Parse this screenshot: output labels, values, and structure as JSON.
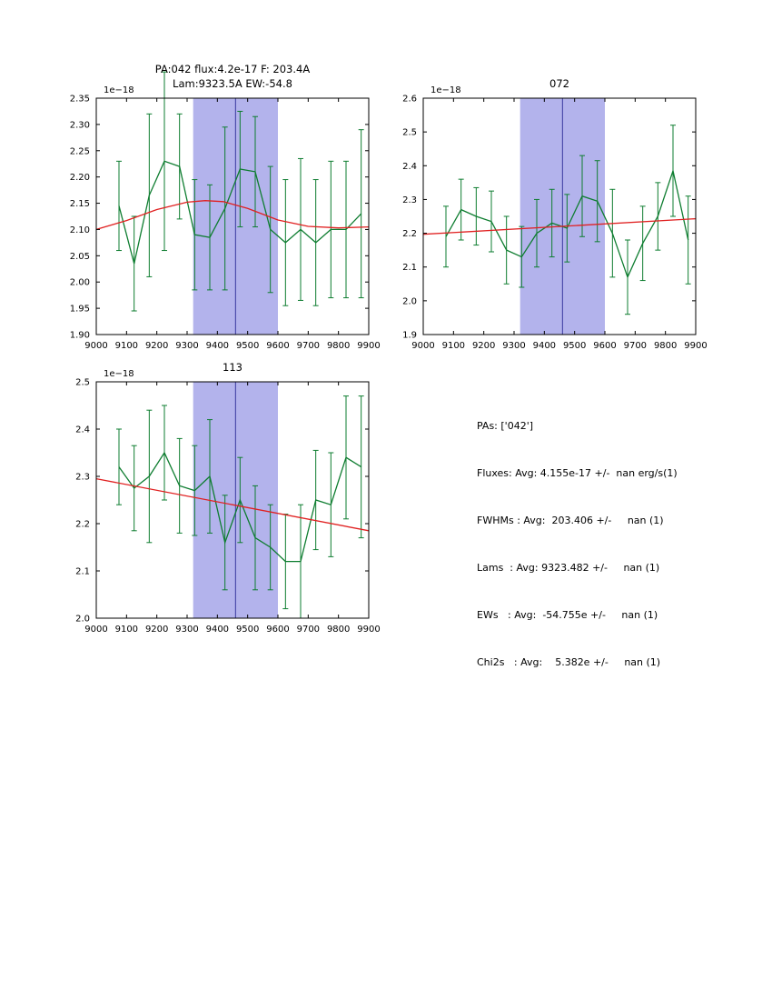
{
  "colors": {
    "data_line": "#0e7d30",
    "error_bar": "#0e7d30",
    "fit_line": "#e02020",
    "band_fill": "#b3b3ec",
    "marker_line": "#3a3aa0",
    "axis": "#000000"
  },
  "stats": {
    "lines": [
      "PAs: ['042']",
      "Fluxes: Avg: 4.155e-17 +/-  nan erg/s(1)",
      "FWHMs : Avg:  203.406 +/-     nan (1)",
      "Lams  : Avg: 9323.482 +/-     nan (1)",
      "EWs   : Avg:  -54.755e +/-     nan (1)",
      "Chi2s   : Avg:    5.382e +/-     nan (1)"
    ]
  },
  "chart_data": [
    {
      "type": "line",
      "title_lines": [
        "PA:042 flux:4.2e-17 F: 203.4A",
        "Lam:9323.5A EW:-54.8"
      ],
      "offset_label": "1e−18",
      "xlabel": "",
      "ylabel": "",
      "xlim": [
        9000,
        9900
      ],
      "ylim": [
        1.9,
        2.35
      ],
      "xticks": [
        9000,
        9100,
        9200,
        9300,
        9400,
        9500,
        9600,
        9700,
        9800,
        9900
      ],
      "yticks": [
        1.9,
        1.95,
        2.0,
        2.05,
        2.1,
        2.15,
        2.2,
        2.25,
        2.3,
        2.35
      ],
      "ytick_labels": [
        "1.90",
        "1.95",
        "2.00",
        "2.05",
        "2.10",
        "2.15",
        "2.20",
        "2.25",
        "2.30",
        "2.35"
      ],
      "band": {
        "x0": 9320,
        "x1": 9600
      },
      "marker_x": 9460,
      "x": [
        9075,
        9125,
        9175,
        9225,
        9275,
        9325,
        9375,
        9425,
        9475,
        9525,
        9575,
        9625,
        9675,
        9725,
        9775,
        9825,
        9875
      ],
      "series": [
        {
          "name": "spectrum",
          "values": [
            2.145,
            2.035,
            2.165,
            2.23,
            2.22,
            2.09,
            2.085,
            2.14,
            2.215,
            2.21,
            2.1,
            2.075,
            2.1,
            2.075,
            2.1,
            2.1,
            2.13
          ],
          "errors": [
            0.085,
            0.09,
            0.155,
            0.17,
            0.1,
            0.105,
            0.1,
            0.155,
            0.11,
            0.105,
            0.12,
            0.12,
            0.135,
            0.12,
            0.13,
            0.13,
            0.16
          ]
        }
      ],
      "fit": {
        "x": [
          9000,
          9100,
          9200,
          9300,
          9360,
          9420,
          9500,
          9600,
          9700,
          9800,
          9900
        ],
        "y": [
          2.1,
          2.117,
          2.138,
          2.152,
          2.155,
          2.153,
          2.14,
          2.118,
          2.106,
          2.103,
          2.105
        ]
      }
    },
    {
      "type": "line",
      "title_lines": [
        "072"
      ],
      "offset_label": "1e−18",
      "xlabel": "",
      "ylabel": "",
      "xlim": [
        9000,
        9900
      ],
      "ylim": [
        1.9,
        2.6
      ],
      "xticks": [
        9000,
        9100,
        9200,
        9300,
        9400,
        9500,
        9600,
        9700,
        9800,
        9900
      ],
      "yticks": [
        1.9,
        2.0,
        2.1,
        2.2,
        2.3,
        2.4,
        2.5,
        2.6
      ],
      "ytick_labels": [
        "1.9",
        "2.0",
        "2.1",
        "2.2",
        "2.3",
        "2.4",
        "2.5",
        "2.6"
      ],
      "band": {
        "x0": 9320,
        "x1": 9600
      },
      "marker_x": 9460,
      "x": [
        9075,
        9125,
        9175,
        9225,
        9275,
        9325,
        9375,
        9425,
        9475,
        9525,
        9575,
        9625,
        9675,
        9725,
        9775,
        9825,
        9875
      ],
      "series": [
        {
          "name": "spectrum",
          "values": [
            2.19,
            2.27,
            2.25,
            2.235,
            2.15,
            2.13,
            2.2,
            2.23,
            2.215,
            2.31,
            2.295,
            2.2,
            2.07,
            2.17,
            2.25,
            2.385,
            2.18
          ],
          "errors": [
            0.09,
            0.09,
            0.085,
            0.09,
            0.1,
            0.09,
            0.1,
            0.1,
            0.1,
            0.12,
            0.12,
            0.13,
            0.11,
            0.11,
            0.1,
            0.135,
            0.13
          ]
        }
      ],
      "fit": {
        "x": [
          9000,
          9900
        ],
        "y": [
          2.197,
          2.243
        ]
      }
    },
    {
      "type": "line",
      "title_lines": [
        "113"
      ],
      "offset_label": "1e−18",
      "xlabel": "",
      "ylabel": "",
      "xlim": [
        9000,
        9900
      ],
      "ylim": [
        2.0,
        2.5
      ],
      "xticks": [
        9000,
        9100,
        9200,
        9300,
        9400,
        9500,
        9600,
        9700,
        9800,
        9900
      ],
      "yticks": [
        2.0,
        2.1,
        2.2,
        2.3,
        2.4,
        2.5
      ],
      "ytick_labels": [
        "2.0",
        "2.1",
        "2.2",
        "2.3",
        "2.4",
        "2.5"
      ],
      "band": {
        "x0": 9320,
        "x1": 9600
      },
      "marker_x": 9460,
      "x": [
        9075,
        9125,
        9175,
        9225,
        9275,
        9325,
        9375,
        9425,
        9475,
        9525,
        9575,
        9625,
        9675,
        9725,
        9775,
        9825,
        9875
      ],
      "series": [
        {
          "name": "spectrum",
          "values": [
            2.32,
            2.275,
            2.3,
            2.35,
            2.28,
            2.27,
            2.3,
            2.16,
            2.25,
            2.17,
            2.15,
            2.12,
            2.12,
            2.25,
            2.24,
            2.34,
            2.32
          ],
          "errors": [
            0.08,
            0.09,
            0.14,
            0.1,
            0.1,
            0.095,
            0.12,
            0.1,
            0.09,
            0.11,
            0.09,
            0.1,
            0.12,
            0.105,
            0.11,
            0.13,
            0.15
          ]
        }
      ],
      "fit": {
        "x": [
          9000,
          9900
        ],
        "y": [
          2.295,
          2.185
        ]
      }
    }
  ]
}
